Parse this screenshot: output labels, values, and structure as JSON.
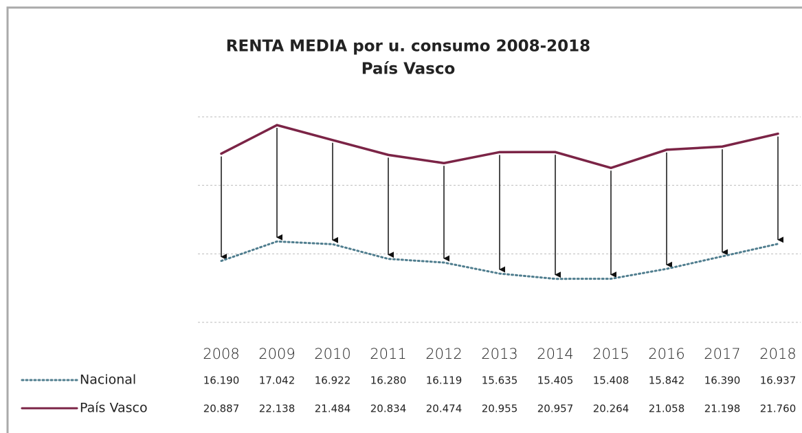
{
  "chart_data": {
    "type": "line",
    "title": "RENTA MEDIA por u. consumo 2008-2018",
    "subtitle": "País Vasco",
    "categories": [
      "2008",
      "2009",
      "2010",
      "2011",
      "2012",
      "2013",
      "2014",
      "2015",
      "2016",
      "2017",
      "2018"
    ],
    "series": [
      {
        "name": "Nacional",
        "color": "#4f7d8e",
        "style": "dotted",
        "values": [
          16190,
          17042,
          16922,
          16280,
          16119,
          15635,
          15405,
          15408,
          15842,
          16390,
          16937
        ],
        "value_labels": [
          "16.190",
          "17.042",
          "16.922",
          "16.280",
          "16.119",
          "15.635",
          "15.405",
          "15.408",
          "15.842",
          "16.390",
          "16.937"
        ]
      },
      {
        "name": "País Vasco",
        "color": "#7b2446",
        "style": "solid",
        "values": [
          20887,
          22138,
          21484,
          20834,
          20474,
          20955,
          20957,
          20264,
          21058,
          21198,
          21760
        ],
        "value_labels": [
          "20.887",
          "22.138",
          "21.484",
          "20.834",
          "20.474",
          "20.955",
          "20.957",
          "20.264",
          "21.058",
          "21.198",
          "21.760"
        ]
      }
    ],
    "ylim": [
      13500,
      22500
    ],
    "yticks": [
      13500,
      16500,
      19500,
      22500
    ],
    "grid": true
  }
}
